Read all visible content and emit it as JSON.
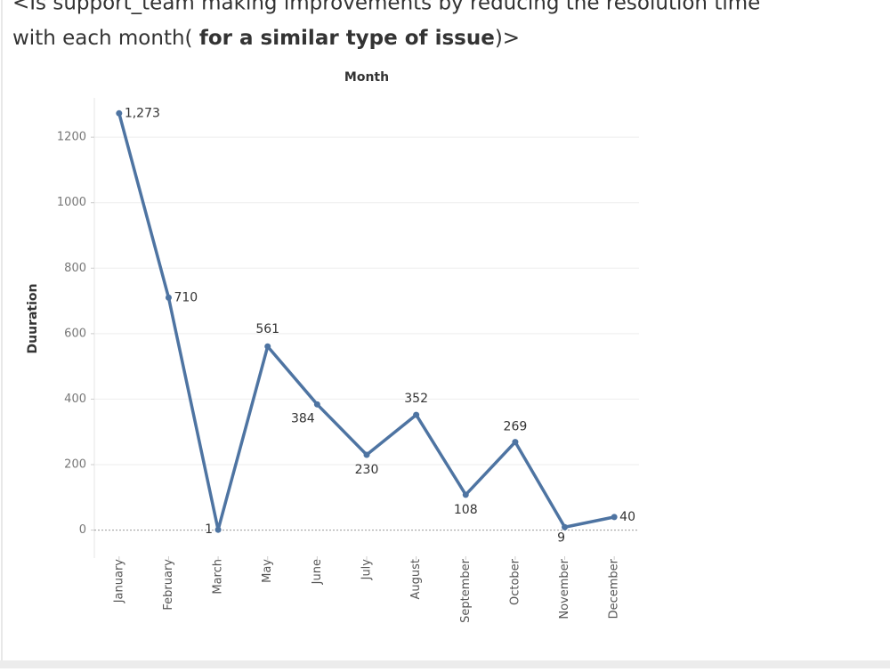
{
  "chart_data": {
    "type": "line",
    "title_parts": [
      "<Is  support_team making improvements by reducing the resolution time",
      "with each month( ",
      "for a similar type of issue",
      ")>"
    ],
    "x_header": "Month",
    "y_label": "Duuration",
    "categories": [
      "January",
      "February",
      "March",
      "May",
      "June",
      "July",
      "August",
      "September",
      "October",
      "November",
      "December"
    ],
    "values": [
      1273,
      710,
      1,
      561,
      384,
      230,
      352,
      108,
      269,
      9,
      40
    ],
    "value_labels": [
      "1,273",
      "710",
      "1",
      "561",
      "384",
      "230",
      "352",
      "108",
      "269",
      "9",
      "40"
    ],
    "color": "#4e74a2",
    "ylim": [
      -80,
      1320
    ],
    "yticks": [
      0,
      200,
      400,
      600,
      800,
      1000,
      1200
    ],
    "grid": true
  }
}
